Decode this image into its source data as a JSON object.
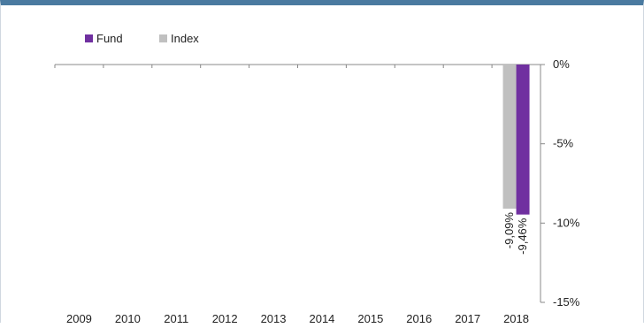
{
  "chart_data": {
    "type": "bar",
    "categories": [
      "2009",
      "2010",
      "2011",
      "2012",
      "2013",
      "2014",
      "2015",
      "2016",
      "2017",
      "2018"
    ],
    "series": [
      {
        "name": "Index",
        "color": "#c0c0c0",
        "values": [
          null,
          null,
          null,
          null,
          null,
          null,
          null,
          null,
          null,
          -9.09
        ],
        "data_labels": [
          null,
          null,
          null,
          null,
          null,
          null,
          null,
          null,
          null,
          "-9,09%"
        ]
      },
      {
        "name": "Fund",
        "color": "#7030a0",
        "values": [
          null,
          null,
          null,
          null,
          null,
          null,
          null,
          null,
          null,
          -9.46
        ],
        "data_labels": [
          null,
          null,
          null,
          null,
          null,
          null,
          null,
          null,
          null,
          "-9,46%"
        ]
      }
    ],
    "legend": [
      {
        "name": "Fund",
        "color": "#7030a0"
      },
      {
        "name": "Index",
        "color": "#c0c0c0"
      }
    ],
    "y_ticks": [
      {
        "value": 0,
        "label": "0%"
      },
      {
        "value": -5,
        "label": "-5%"
      },
      {
        "value": -10,
        "label": "-10%"
      },
      {
        "value": -15,
        "label": "-15%"
      }
    ],
    "ylim": [
      -15,
      0
    ],
    "y_axis_side": "right",
    "legend_position": "top-left",
    "grid": false
  }
}
